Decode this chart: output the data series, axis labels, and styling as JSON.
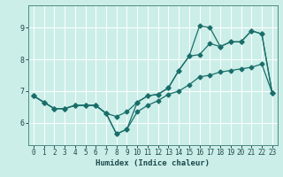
{
  "title": "",
  "xlabel": "Humidex (Indice chaleur)",
  "ylabel": "",
  "xlim": [
    -0.5,
    23.5
  ],
  "ylim": [
    5.3,
    9.7
  ],
  "yticks": [
    6,
    7,
    8,
    9
  ],
  "xticks": [
    0,
    1,
    2,
    3,
    4,
    5,
    6,
    7,
    8,
    9,
    10,
    11,
    12,
    13,
    14,
    15,
    16,
    17,
    18,
    19,
    20,
    21,
    22,
    23
  ],
  "bg_color": "#cceee8",
  "grid_color": "#ffffff",
  "line_color": "#1a6e6a",
  "series": [
    [
      6.85,
      6.65,
      6.45,
      6.45,
      6.55,
      6.55,
      6.55,
      6.3,
      5.65,
      5.8,
      6.35,
      6.55,
      6.7,
      6.9,
      7.0,
      7.2,
      7.45,
      7.5,
      7.6,
      7.65,
      7.7,
      7.75,
      7.85,
      6.95
    ],
    [
      6.85,
      6.65,
      6.45,
      6.45,
      6.55,
      6.55,
      6.55,
      6.3,
      6.2,
      6.35,
      6.65,
      6.85,
      6.9,
      7.1,
      7.65,
      8.1,
      8.15,
      8.5,
      8.4,
      8.55,
      8.55,
      8.9,
      8.8,
      6.95
    ],
    [
      6.85,
      6.65,
      6.45,
      6.45,
      6.55,
      6.55,
      6.55,
      6.3,
      5.65,
      5.8,
      6.65,
      6.85,
      6.9,
      7.1,
      7.65,
      8.1,
      9.05,
      9.0,
      8.4,
      8.55,
      8.55,
      8.9,
      8.8,
      6.95
    ]
  ],
  "marker": "D",
  "markersize": 2.5,
  "linewidth": 0.9
}
